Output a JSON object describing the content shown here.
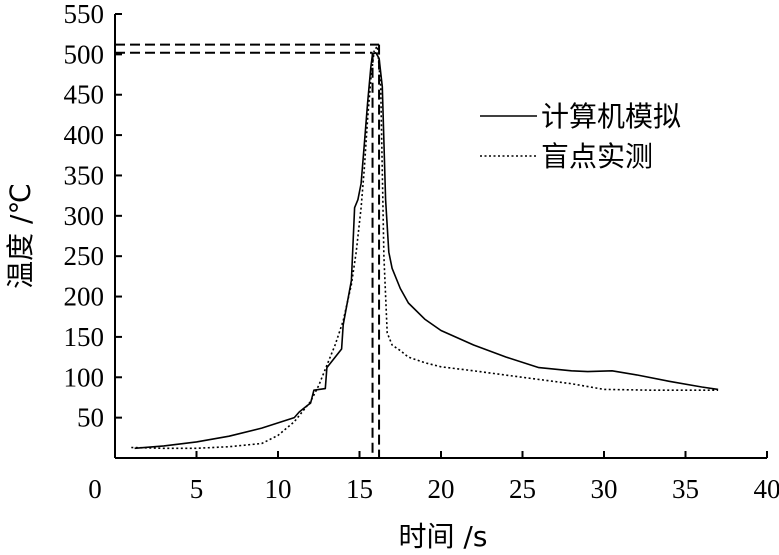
{
  "chart_data": {
    "type": "line",
    "xlabel": "时间 /s",
    "ylabel": "温度 /℃",
    "xlim": [
      0,
      40
    ],
    "ylim": [
      0,
      550
    ],
    "x_ticks": [
      0,
      5,
      10,
      15,
      20,
      25,
      30,
      35,
      40
    ],
    "y_ticks": [
      50,
      100,
      150,
      200,
      250,
      300,
      350,
      400,
      450,
      500,
      550
    ],
    "grid": false,
    "legend_position": "right",
    "reference_lines": [
      {
        "y": 512,
        "x": 16.2
      },
      {
        "y": 502,
        "x": 15.8
      }
    ],
    "series": [
      {
        "name": "计算机模拟",
        "style": "solid",
        "x": [
          1.2,
          3,
          5,
          7,
          9,
          11,
          11.3,
          11.8,
          12,
          12.2,
          12.9,
          13,
          13.9,
          14,
          14.5,
          14.7,
          14.9,
          15.1,
          15.3,
          15.5,
          15.7,
          15.8,
          16.0,
          16.2,
          16.4,
          16.6,
          16.8,
          17,
          17.5,
          18,
          19,
          20,
          22,
          24,
          26,
          28,
          29,
          30.5,
          32,
          34,
          36,
          37
        ],
        "y": [
          12,
          15,
          20,
          27,
          37,
          50,
          57,
          65,
          68,
          84,
          86,
          112,
          135,
          165,
          220,
          310,
          320,
          340,
          390,
          440,
          485,
          500,
          502,
          495,
          460,
          320,
          255,
          235,
          210,
          192,
          172,
          158,
          140,
          125,
          112,
          108,
          107,
          108,
          103,
          95,
          88,
          85
        ]
      },
      {
        "name": "盲点实测",
        "style": "dotted",
        "x": [
          1,
          3,
          5,
          7,
          9,
          10,
          11,
          12,
          12.5,
          13,
          13.5,
          14,
          14.5,
          14.8,
          15.1,
          15.3,
          15.5,
          15.7,
          15.9,
          16.1,
          16.3,
          16.5,
          16.7,
          17,
          17.5,
          18,
          19,
          20,
          22,
          25,
          28,
          30,
          33,
          35,
          37
        ],
        "y": [
          13,
          12,
          12,
          14,
          18,
          28,
          45,
          70,
          90,
          115,
          140,
          170,
          215,
          255,
          310,
          360,
          420,
          470,
          505,
          510,
          460,
          250,
          155,
          140,
          133,
          125,
          118,
          113,
          108,
          100,
          92,
          85,
          84,
          84,
          84
        ]
      }
    ]
  }
}
